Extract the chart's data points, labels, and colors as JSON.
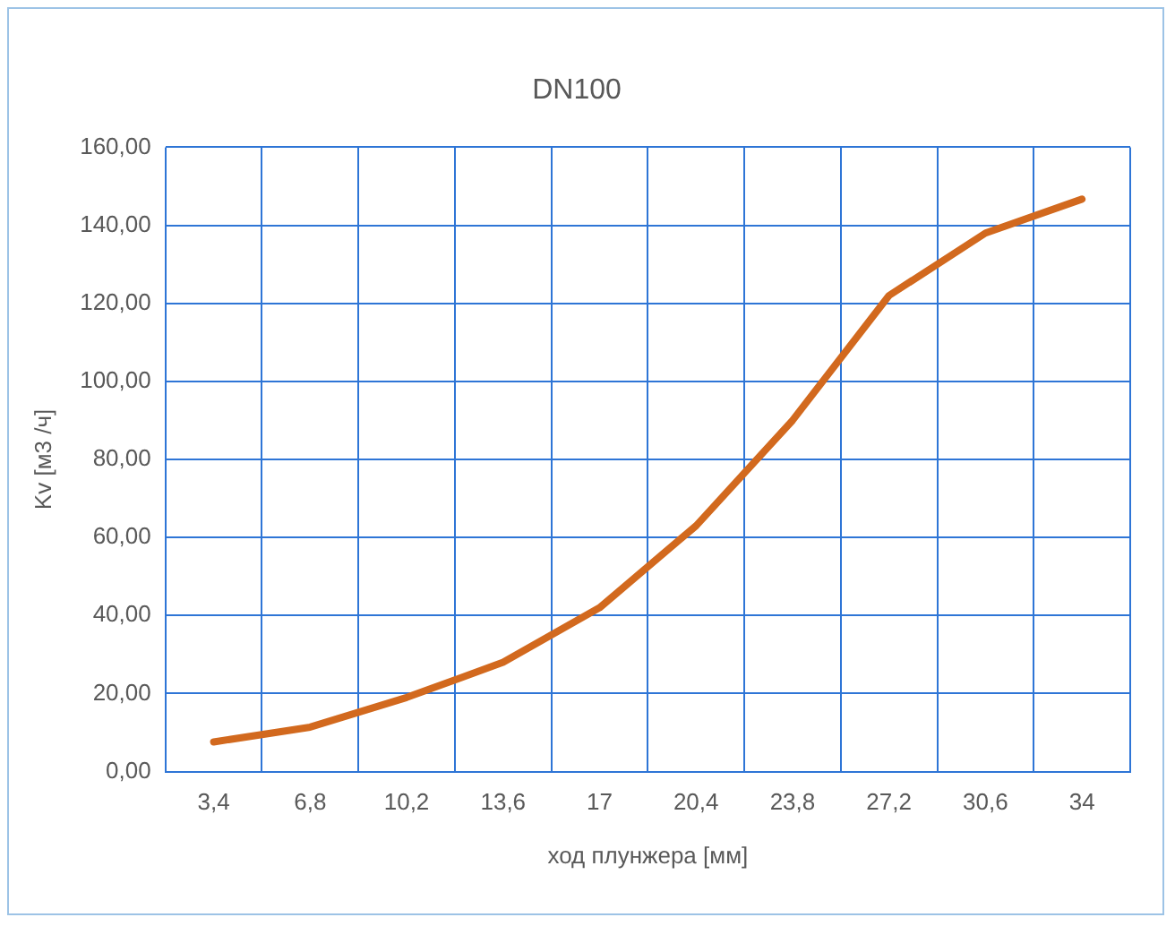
{
  "chart_data": {
    "type": "line",
    "title": "DN100",
    "xlabel": "ход плунжера [мм]",
    "ylabel": "Kv [м3 /ч]",
    "categories": [
      "3,4",
      "6,8",
      "10,2",
      "13,6",
      "17",
      "20,4",
      "23,8",
      "27,2",
      "30,6",
      "34"
    ],
    "series": [
      {
        "color": "#d2691e",
        "values": [
          7.6,
          11.4,
          19,
          28,
          42,
          63,
          90,
          122,
          138,
          146.7
        ]
      }
    ],
    "ylim": [
      0,
      160
    ],
    "yticks": [
      {
        "value": 0,
        "label": "0,00"
      },
      {
        "value": 20,
        "label": "20,00"
      },
      {
        "value": 40,
        "label": "40,00"
      },
      {
        "value": 60,
        "label": "60,00"
      },
      {
        "value": 80,
        "label": "80,00"
      },
      {
        "value": 100,
        "label": "100,00"
      },
      {
        "value": 120,
        "label": "120,00"
      },
      {
        "value": 140,
        "label": "140,00"
      },
      {
        "value": 160,
        "label": "160,00"
      }
    ],
    "grid": true,
    "legend": false,
    "marker": "none",
    "line_style": "solid"
  }
}
